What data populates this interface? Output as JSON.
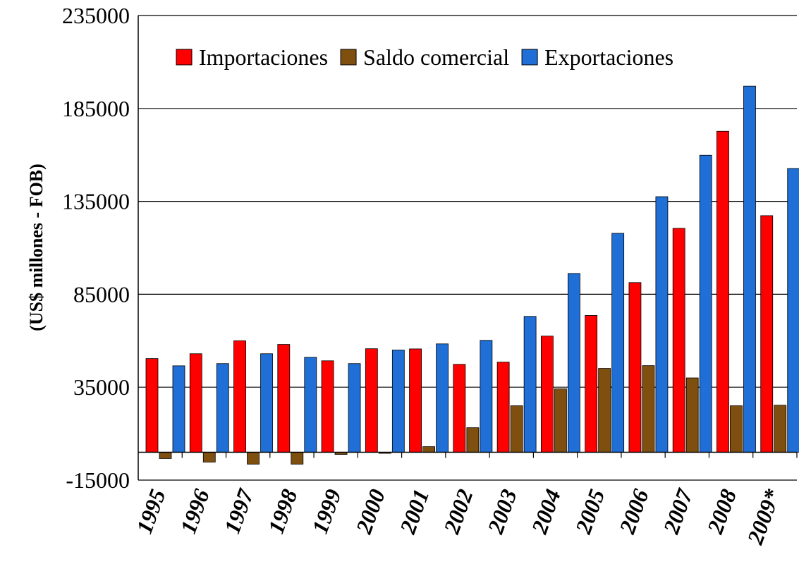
{
  "chart_data": {
    "type": "bar",
    "y_label": "(US$ millones - FOB)",
    "categories": [
      "1995",
      "1996",
      "1997",
      "1998",
      "1999",
      "2000",
      "2001",
      "2002",
      "2003",
      "2004",
      "2005",
      "2006",
      "2007",
      "2008",
      "2009*"
    ],
    "series": [
      {
        "name": "Importaciones",
        "color": "#ff0000",
        "values": [
          50400,
          53000,
          60000,
          58000,
          49200,
          55700,
          55600,
          47300,
          48500,
          62500,
          73600,
          91300,
          120500,
          172700,
          127300
        ]
      },
      {
        "name": "Saldo comercial",
        "color": "#7f4f10",
        "values": [
          -3400,
          -5300,
          -6400,
          -6400,
          -1200,
          -600,
          3000,
          13200,
          25000,
          34100,
          45100,
          46600,
          40000,
          25000,
          25300
        ]
      },
      {
        "name": "Exportaciones",
        "color": "#1f6fd6",
        "values": [
          46500,
          47700,
          53000,
          51100,
          47700,
          55000,
          58300,
          60200,
          73100,
          96200,
          117800,
          137500,
          159800,
          197000,
          152700
        ]
      }
    ],
    "ylim": [
      -15000,
      235000
    ],
    "yticks": [
      -15000,
      35000,
      85000,
      135000,
      185000,
      235000
    ],
    "grid": true
  }
}
